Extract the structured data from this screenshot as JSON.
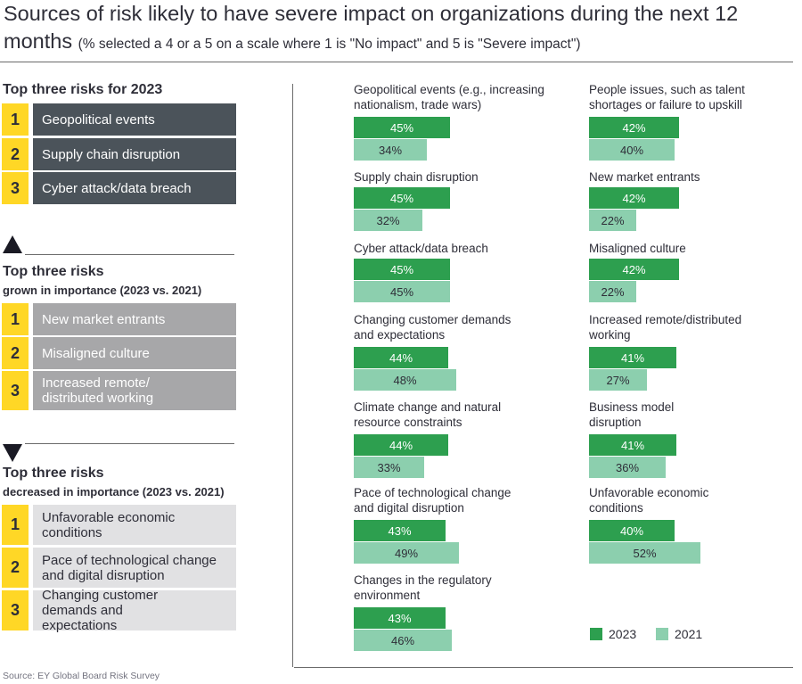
{
  "header": {
    "title_main": "Sources of risk likely to have severe impact on organizations during the next 12 months",
    "title_sub": "(% selected a 4 or a 5 on a scale where 1 is \"No impact\" and 5 is \"Severe impact\")"
  },
  "panels": {
    "top2023": {
      "heading": "Top three risks for 2023",
      "items": [
        {
          "rank": "1",
          "label": "Geopolitical events"
        },
        {
          "rank": "2",
          "label": "Supply chain disruption"
        },
        {
          "rank": "3",
          "label": "Cyber attack/data breach"
        }
      ]
    },
    "grown": {
      "heading": "Top three risks",
      "subheading": "grown in importance (2023 vs. 2021)",
      "items": [
        {
          "rank": "1",
          "label": "New market entrants"
        },
        {
          "rank": "2",
          "label": "Misaligned culture"
        },
        {
          "rank": "3",
          "label": "Increased remote/ distributed working"
        }
      ]
    },
    "decreased": {
      "heading": "Top three risks",
      "subheading": "decreased in importance (2023 vs. 2021)",
      "items": [
        {
          "rank": "1",
          "label": "Unfavorable economic conditions"
        },
        {
          "rank": "2",
          "label": "Pace of technological change and digital disruption"
        },
        {
          "rank": "3",
          "label": "Changing customer demands and expectations"
        }
      ]
    }
  },
  "chart_data": {
    "type": "bar",
    "orientation": "horizontal",
    "title": "Sources of risk likely to have severe impact on organizations during the next 12 months",
    "unit": "%",
    "categories": [
      "Geopolitical events (e.g., increasing nationalism, trade wars)",
      "Supply chain disruption",
      "Cyber attack/data breach",
      "Changing customer demands and expectations",
      "Climate change and natural resource constraints",
      "Pace of technological change and digital disruption",
      "Changes in the regulatory environment",
      "People issues, such as talent shortages or failure to upskill",
      "New market entrants",
      "Misaligned culture",
      "Increased remote/distributed working",
      "Business model disruption",
      "Unfavorable economic conditions"
    ],
    "category_lines": [
      [
        "Geopolitical events (e.g., increasing",
        "nationalism, trade wars)"
      ],
      [
        "Supply chain disruption"
      ],
      [
        "Cyber attack/data breach"
      ],
      [
        "Changing customer demands",
        "and expectations"
      ],
      [
        "Climate change and natural",
        "resource constraints"
      ],
      [
        "Pace of technological change",
        "and digital disruption"
      ],
      [
        "Changes in the regulatory",
        "environment"
      ],
      [
        "People issues, such as talent",
        "shortages or failure to upskill"
      ],
      [
        "New market entrants"
      ],
      [
        "Misaligned culture"
      ],
      [
        "Increased remote/distributed",
        "working"
      ],
      [
        "Business model",
        "disruption"
      ],
      [
        "Unfavorable economic",
        "conditions"
      ]
    ],
    "series": [
      {
        "name": "2023",
        "color": "#2d9f4f",
        "values": [
          45,
          45,
          45,
          44,
          44,
          43,
          43,
          42,
          42,
          42,
          41,
          41,
          40
        ]
      },
      {
        "name": "2021",
        "color": "#8ccfae",
        "values": [
          34,
          32,
          45,
          48,
          33,
          49,
          46,
          40,
          22,
          22,
          27,
          36,
          52
        ]
      }
    ],
    "legend": [
      "2023",
      "2021"
    ]
  },
  "source": "Source: EY Global Board Risk Survey"
}
